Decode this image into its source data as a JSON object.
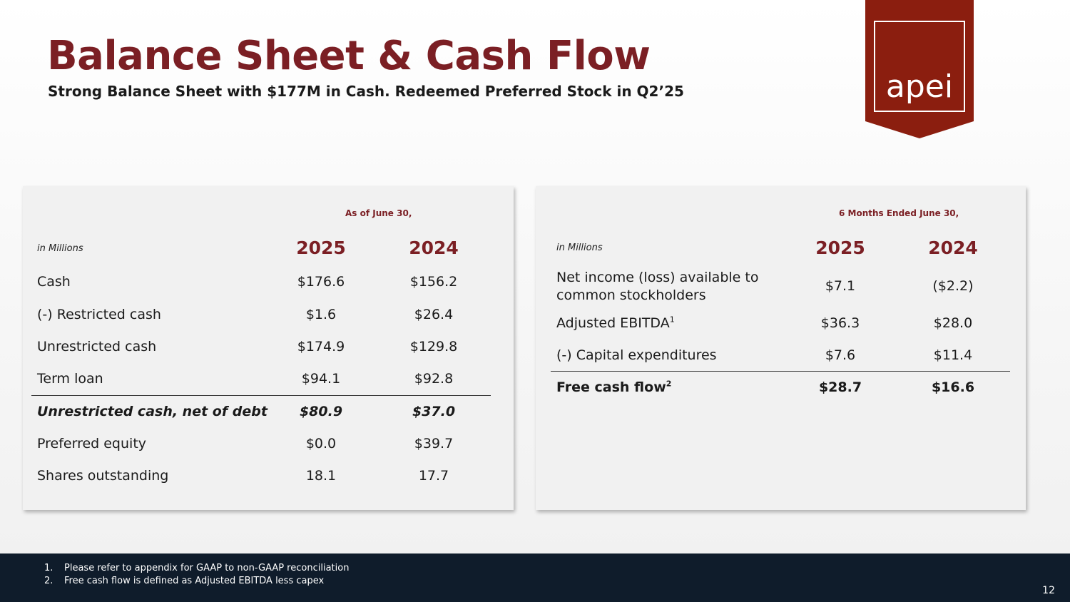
{
  "header": {
    "title": "Balance Sheet & Cash Flow",
    "subtitle": "Strong Balance Sheet with $177M in Cash. Redeemed Preferred Stock in Q2’25"
  },
  "logo": {
    "text": "apei",
    "color": "#8b1e0f"
  },
  "balance_sheet": {
    "period_label": "As of June 30,",
    "unit_label": "in Millions",
    "years": [
      "2025",
      "2024"
    ],
    "rows": [
      {
        "label": "Cash",
        "v2025": "$176.6",
        "v2024": "$156.2"
      },
      {
        "label": "(-) Restricted cash",
        "v2025": "$1.6",
        "v2024": "$26.4"
      },
      {
        "label": "Unrestricted cash",
        "v2025": "$174.9",
        "v2024": "$129.8"
      },
      {
        "label": "Term loan",
        "v2025": "$94.1",
        "v2024": "$92.8"
      },
      {
        "label": "Unrestricted cash, net of debt",
        "v2025": "$80.9",
        "v2024": "$37.0"
      },
      {
        "label": "Preferred equity",
        "v2025": "$0.0",
        "v2024": "$39.7"
      },
      {
        "label": "Shares outstanding",
        "v2025": "18.1",
        "v2024": "17.7"
      }
    ]
  },
  "cash_flow": {
    "period_label": "6 Months Ended June 30,",
    "unit_label": "in Millions",
    "years": [
      "2025",
      "2024"
    ],
    "rows": [
      {
        "label_line1": "Net income (loss) available to",
        "label_line2": "common stockholders",
        "v2025": "$7.1",
        "v2024": "($2.2)"
      },
      {
        "label": "Adjusted EBITDA",
        "sup": "1",
        "v2025": "$36.3",
        "v2024": "$28.0"
      },
      {
        "label": "(-) Capital expenditures",
        "v2025": "$7.6",
        "v2024": "$11.4"
      },
      {
        "label": "Free cash flow",
        "sup": "2",
        "v2025": "$28.7",
        "v2024": "$16.6"
      }
    ]
  },
  "footnotes": [
    {
      "num": "1.",
      "text": "Please refer to appendix for GAAP to non-GAAP reconciliation"
    },
    {
      "num": "2.",
      "text": "Free cash flow is defined as Adjusted EBITDA less capex"
    }
  ],
  "page_number": "12",
  "colors": {
    "accent": "#7b1f24",
    "footer": "#0f1c2b",
    "panel": "#f1f1f1"
  }
}
